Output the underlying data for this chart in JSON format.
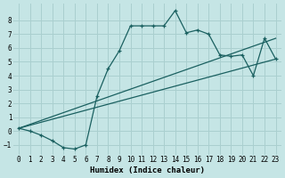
{
  "xlabel": "Humidex (Indice chaleur)",
  "ylabel": "",
  "bg_color": "#c5e5e5",
  "grid_color": "#aacfcf",
  "line_color": "#1a6060",
  "xlim": [
    -0.5,
    23.5
  ],
  "ylim": [
    -1.7,
    9.2
  ],
  "yticks": [
    -1,
    0,
    1,
    2,
    3,
    4,
    5,
    6,
    7,
    8
  ],
  "xticks": [
    0,
    1,
    2,
    3,
    4,
    5,
    6,
    7,
    8,
    9,
    10,
    11,
    12,
    13,
    14,
    15,
    16,
    17,
    18,
    19,
    20,
    21,
    22,
    23
  ],
  "line1_x": [
    0,
    1,
    2,
    3,
    4,
    5,
    6,
    7,
    8,
    9,
    10,
    11,
    12,
    13,
    14,
    15,
    16,
    17,
    18,
    19,
    20,
    21,
    22,
    23
  ],
  "line1_y": [
    0.2,
    0.0,
    -0.3,
    -0.7,
    -1.2,
    -1.3,
    -1.0,
    2.5,
    4.5,
    5.8,
    7.6,
    7.6,
    7.6,
    7.6,
    8.7,
    7.1,
    7.3,
    7.0,
    5.5,
    5.4,
    5.5,
    4.0,
    6.7,
    5.2
  ],
  "line2_x": [
    0,
    23
  ],
  "line2_y": [
    0.2,
    5.2
  ],
  "line3_x": [
    0,
    23
  ],
  "line3_y": [
    0.2,
    6.7
  ]
}
